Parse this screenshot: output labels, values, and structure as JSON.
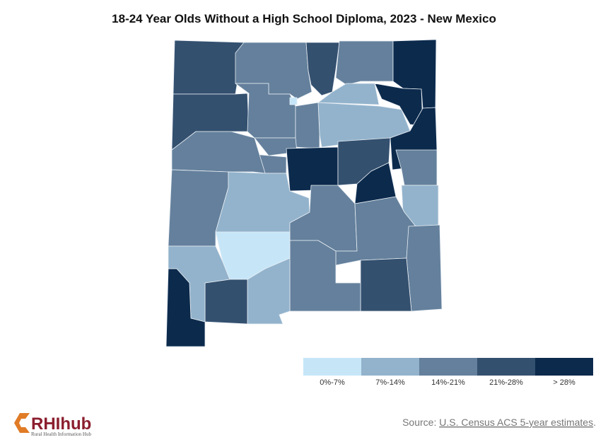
{
  "title": "18-24 Year Olds Without a High School Diploma, 2023 - New Mexico",
  "map": {
    "regions": [
      3,
      2,
      3,
      2,
      4,
      4,
      1,
      1,
      4,
      3,
      2,
      0,
      2,
      2,
      2,
      2,
      4,
      3,
      4,
      2,
      1,
      2,
      1,
      2,
      2,
      2,
      3,
      2,
      0,
      1,
      3,
      1,
      4
    ]
  },
  "legend": {
    "bins": [
      {
        "label": "0%-7%",
        "color": "#c6e6f8"
      },
      {
        "label": "7%-14%",
        "color": "#93b3cc"
      },
      {
        "label": "14%-21%",
        "color": "#64809c"
      },
      {
        "label": "21%-28%",
        "color": "#34506f"
      },
      {
        "label": "> 28%",
        "color": "#0c2a4c"
      }
    ]
  },
  "source": {
    "prefix": "Source:",
    "link": "U.S. Census ACS 5-year estimates",
    "suffix": "."
  },
  "logo": {
    "name": "RHIhub",
    "tagline": "Rural Health Information Hub"
  }
}
